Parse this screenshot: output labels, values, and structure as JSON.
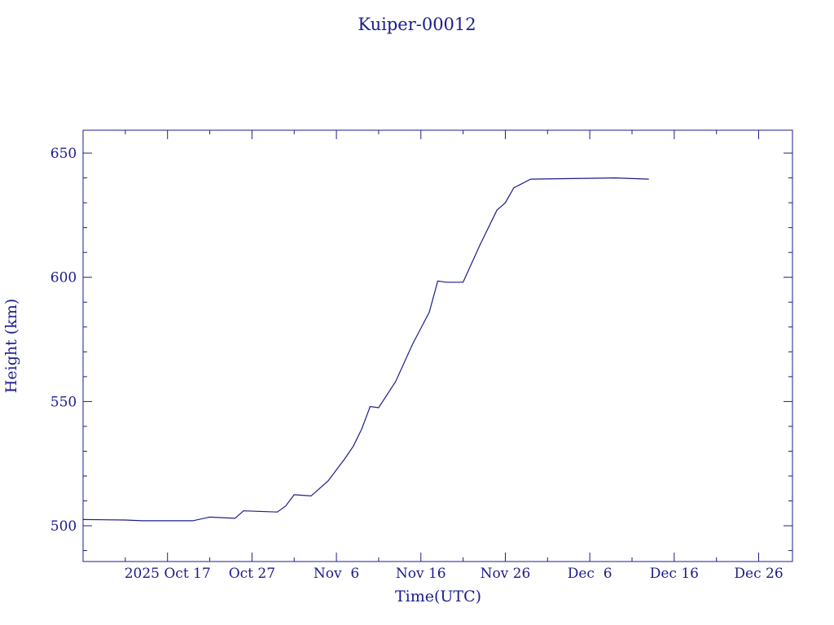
{
  "chart_data": {
    "type": "line",
    "title": "Kuiper-00012",
    "x_label": "Time(UTC)",
    "y_label": "Height (km)",
    "x": [
      "2025-10-07",
      "2025-10-12",
      "2025-10-14",
      "2025-10-20",
      "2025-10-22",
      "2025-10-25",
      "2025-10-26",
      "2025-10-30",
      "2025-10-31",
      "2025-11-01",
      "2025-11-03",
      "2025-11-05",
      "2025-11-07",
      "2025-11-08",
      "2025-11-09",
      "2025-11-10",
      "2025-11-11",
      "2025-11-13",
      "2025-11-15",
      "2025-11-17",
      "2025-11-18",
      "2025-11-19",
      "2025-11-21",
      "2025-11-23",
      "2025-11-25",
      "2025-11-26",
      "2025-11-27",
      "2025-11-29",
      "2025-12-09",
      "2025-12-13"
    ],
    "values": [
      502.5,
      502.3,
      502,
      502,
      503.5,
      503,
      506,
      505.5,
      508,
      512.5,
      512,
      518,
      527,
      532,
      539,
      548,
      547.5,
      558,
      573,
      586,
      598.5,
      598,
      598,
      613,
      627,
      630,
      636,
      639.5,
      640,
      639.5
    ],
    "color": "#1c1c8c",
    "xlim": [
      "2025-10-07",
      "2025-12-30"
    ],
    "xticks": [
      {
        "value": "2025-10-17",
        "label": "2025 Oct 17"
      },
      {
        "value": "2025-10-27",
        "label": "Oct 27"
      },
      {
        "value": "2025-11-06",
        "label": "Nov  6"
      },
      {
        "value": "2025-11-16",
        "label": "Nov 16"
      },
      {
        "value": "2025-11-26",
        "label": "Nov 26"
      },
      {
        "value": "2025-12-06",
        "label": "Dec  6"
      },
      {
        "value": "2025-12-16",
        "label": "Dec 16"
      },
      {
        "value": "2025-12-26",
        "label": "Dec 26"
      }
    ],
    "xminor": [
      "2025-10-12",
      "2025-10-22",
      "2025-11-01",
      "2025-11-11",
      "2025-11-21",
      "2025-12-01",
      "2025-12-11",
      "2025-12-21"
    ],
    "ylim": [
      485.6,
      659.2
    ],
    "yticks": [
      500,
      550,
      600,
      650
    ],
    "yminor": [
      490,
      510,
      520,
      530,
      540,
      560,
      570,
      580,
      590,
      610,
      620,
      630,
      640
    ]
  }
}
